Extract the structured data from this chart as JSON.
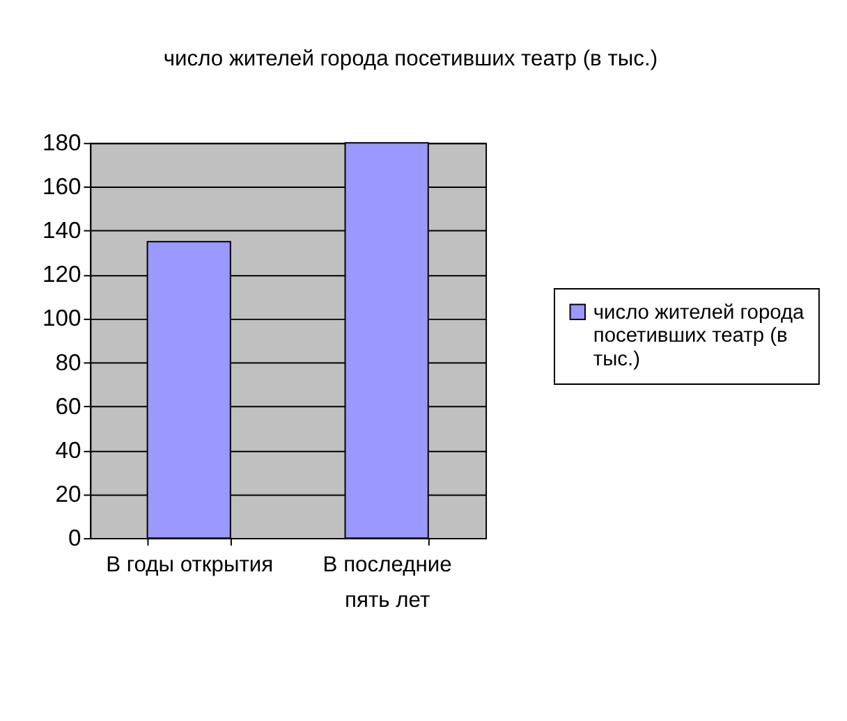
{
  "chart_data": {
    "type": "bar",
    "title": "число жителей города посетивших театр (в тыс.)",
    "categories": [
      "В годы открытия",
      "В последние пять лет"
    ],
    "series": [
      {
        "name": "число жителей города посетивших театр (в тыс.)",
        "color": "#9999ff",
        "values": [
          135,
          180
        ]
      }
    ],
    "ylim": [
      0,
      180
    ],
    "yticks": [
      0,
      20,
      40,
      60,
      80,
      100,
      120,
      140,
      160,
      180
    ],
    "grid": "y",
    "legend": "right"
  }
}
